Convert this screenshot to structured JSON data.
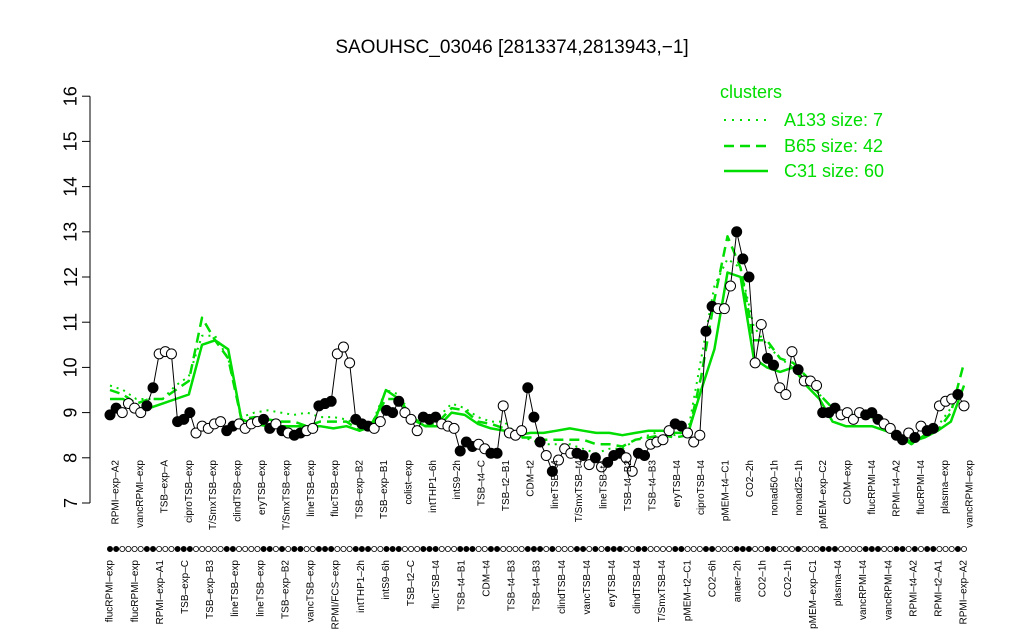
{
  "chart_data": {
    "type": "line",
    "title": "SAOUHSC_03046 [2813374,2813943,−1]",
    "xlabel": "",
    "ylabel": "",
    "ylim": [
      7,
      16
    ],
    "yticks": [
      7,
      8,
      9,
      10,
      11,
      12,
      13,
      14,
      15,
      16
    ],
    "grid": false,
    "legend": {
      "title": "clusters",
      "placement": "top-right",
      "entries": [
        "A133 size: 7",
        "B65 size: 42",
        "C31 size: 60"
      ]
    },
    "colors": {
      "series": "#00dd00",
      "axis": "#000000",
      "points": "#000000",
      "open_points": "#ffffff"
    },
    "labels_top": [
      "RPMI–exp–A2",
      "vancRPMI–exp",
      "TSB–exp–A",
      "ciproTSB–exp",
      "T/SmxTSB–exp",
      "clindTSB–exp",
      "eryTSB–exp",
      "T/SmxTSB–exp",
      "lineTSB–exp",
      "flucTSB–exp",
      "TSB–exp–B2",
      "TSB–exp–B1",
      "colist–exp",
      "intTHP1–6h",
      "intS9–2h",
      "TSB–t4–C",
      "TSB–t2–B1",
      "CDM–t2",
      "lineTSB–t4",
      "T/SmxTSB–t4",
      "lineTSB–t4",
      "TSB–t4–B2",
      "TSB–t4–B3",
      "eryTSB–t4",
      "ciproTSB–t4",
      "pMEM–t4–C1",
      "CO2–2h",
      "nonad50–1h",
      "nonad25–1h",
      "pMEM–exp–C2",
      "CDM–exp",
      "flucRPMI–t4",
      "RPMI–t4–A2",
      "flucRPMI–t4",
      "plasma–exp",
      "vancRPMI–exp"
    ],
    "labels_bottom": [
      "flucRPMI–exp",
      "flucRPMI–exp",
      "RPMI–exp–A1",
      "TSB–exp–C",
      "TSB–exp–B3",
      "lineTSB–exp",
      "lineTSB–exp",
      "TSB–exp–B2",
      "vancTSB–exp",
      "RPMI/FCS–exp",
      "intTHP1–2h",
      "intS9–6h",
      "TSB–t2–C",
      "flucTSB–t4",
      "TSB–t4–B1",
      "CDM–t4",
      "TSB–t4–B3",
      "TSB–t4–B3",
      "clindTSB–t4",
      "vancTSB–t4",
      "eryTSB–t4",
      "clindTSB–t4",
      "T/SmxTSB–t4",
      "pMEM–t2–C1",
      "CO2–6h",
      "anaer–2h",
      "CO2–1h",
      "CO2–1h",
      "pMEM–exp–C1",
      "plasma–t4",
      "vancRPMI–t4",
      "vancRPMI–t4",
      "RPMI–t4–A2",
      "RPMI–t2–A1",
      "RPMI–exp–A2"
    ],
    "points": [
      {
        "y": 8.95,
        "f": 1
      },
      {
        "y": 9.1,
        "f": 1
      },
      {
        "y": 9.0,
        "f": 0
      },
      {
        "y": 9.2,
        "f": 0
      },
      {
        "y": 9.1,
        "f": 0
      },
      {
        "y": 9.0,
        "f": 0
      },
      {
        "y": 9.15,
        "f": 1
      },
      {
        "y": 9.55,
        "f": 1
      },
      {
        "y": 10.3,
        "f": 0
      },
      {
        "y": 10.35,
        "f": 0
      },
      {
        "y": 10.3,
        "f": 0
      },
      {
        "y": 8.8,
        "f": 1
      },
      {
        "y": 8.85,
        "f": 1
      },
      {
        "y": 9.0,
        "f": 1
      },
      {
        "y": 8.55,
        "f": 0
      },
      {
        "y": 8.7,
        "f": 0
      },
      {
        "y": 8.65,
        "f": 0
      },
      {
        "y": 8.75,
        "f": 0
      },
      {
        "y": 8.8,
        "f": 0
      },
      {
        "y": 8.6,
        "f": 1
      },
      {
        "y": 8.7,
        "f": 1
      },
      {
        "y": 8.75,
        "f": 0
      },
      {
        "y": 8.65,
        "f": 0
      },
      {
        "y": 8.75,
        "f": 0
      },
      {
        "y": 8.8,
        "f": 0
      },
      {
        "y": 8.85,
        "f": 1
      },
      {
        "y": 8.65,
        "f": 1
      },
      {
        "y": 8.75,
        "f": 0
      },
      {
        "y": 8.6,
        "f": 1
      },
      {
        "y": 8.55,
        "f": 0
      },
      {
        "y": 8.5,
        "f": 1
      },
      {
        "y": 8.55,
        "f": 1
      },
      {
        "y": 8.6,
        "f": 0
      },
      {
        "y": 8.65,
        "f": 0
      },
      {
        "y": 9.15,
        "f": 1
      },
      {
        "y": 9.2,
        "f": 1
      },
      {
        "y": 9.25,
        "f": 1
      },
      {
        "y": 10.3,
        "f": 0
      },
      {
        "y": 10.45,
        "f": 0
      },
      {
        "y": 10.1,
        "f": 0
      },
      {
        "y": 8.85,
        "f": 1
      },
      {
        "y": 8.75,
        "f": 1
      },
      {
        "y": 8.7,
        "f": 1
      },
      {
        "y": 8.65,
        "f": 0
      },
      {
        "y": 8.8,
        "f": 0
      },
      {
        "y": 9.05,
        "f": 1
      },
      {
        "y": 9.0,
        "f": 1
      },
      {
        "y": 9.25,
        "f": 1
      },
      {
        "y": 9.0,
        "f": 0
      },
      {
        "y": 8.85,
        "f": 0
      },
      {
        "y": 8.6,
        "f": 0
      },
      {
        "y": 8.9,
        "f": 1
      },
      {
        "y": 8.85,
        "f": 1
      },
      {
        "y": 8.9,
        "f": 1
      },
      {
        "y": 8.75,
        "f": 0
      },
      {
        "y": 8.7,
        "f": 0
      },
      {
        "y": 8.65,
        "f": 0
      },
      {
        "y": 8.15,
        "f": 1
      },
      {
        "y": 8.35,
        "f": 1
      },
      {
        "y": 8.25,
        "f": 1
      },
      {
        "y": 8.3,
        "f": 0
      },
      {
        "y": 8.2,
        "f": 0
      },
      {
        "y": 8.1,
        "f": 1
      },
      {
        "y": 8.1,
        "f": 1
      },
      {
        "y": 9.15,
        "f": 0
      },
      {
        "y": 8.55,
        "f": 0
      },
      {
        "y": 8.5,
        "f": 0
      },
      {
        "y": 8.6,
        "f": 0
      },
      {
        "y": 9.55,
        "f": 1
      },
      {
        "y": 8.9,
        "f": 1
      },
      {
        "y": 8.35,
        "f": 1
      },
      {
        "y": 8.05,
        "f": 0
      },
      {
        "y": 7.7,
        "f": 1
      },
      {
        "y": 7.95,
        "f": 0
      },
      {
        "y": 8.2,
        "f": 0
      },
      {
        "y": 8.1,
        "f": 0
      },
      {
        "y": 8.1,
        "f": 1
      },
      {
        "y": 8.05,
        "f": 1
      },
      {
        "y": 7.85,
        "f": 0
      },
      {
        "y": 8.0,
        "f": 1
      },
      {
        "y": 7.8,
        "f": 0
      },
      {
        "y": 7.9,
        "f": 1
      },
      {
        "y": 8.05,
        "f": 1
      },
      {
        "y": 8.1,
        "f": 1
      },
      {
        "y": 8.0,
        "f": 0
      },
      {
        "y": 7.7,
        "f": 0
      },
      {
        "y": 8.1,
        "f": 1
      },
      {
        "y": 8.05,
        "f": 1
      },
      {
        "y": 8.3,
        "f": 0
      },
      {
        "y": 8.35,
        "f": 0
      },
      {
        "y": 8.4,
        "f": 0
      },
      {
        "y": 8.6,
        "f": 0
      },
      {
        "y": 8.75,
        "f": 1
      },
      {
        "y": 8.7,
        "f": 1
      },
      {
        "y": 8.55,
        "f": 0
      },
      {
        "y": 8.35,
        "f": 0
      },
      {
        "y": 8.5,
        "f": 0
      },
      {
        "y": 10.8,
        "f": 1
      },
      {
        "y": 11.35,
        "f": 1
      },
      {
        "y": 11.3,
        "f": 0
      },
      {
        "y": 11.3,
        "f": 0
      },
      {
        "y": 11.8,
        "f": 0
      },
      {
        "y": 13.0,
        "f": 1
      },
      {
        "y": 12.4,
        "f": 1
      },
      {
        "y": 12.0,
        "f": 1
      },
      {
        "y": 10.1,
        "f": 0
      },
      {
        "y": 10.95,
        "f": 0
      },
      {
        "y": 10.2,
        "f": 1
      },
      {
        "y": 10.05,
        "f": 1
      },
      {
        "y": 9.55,
        "f": 0
      },
      {
        "y": 9.4,
        "f": 0
      },
      {
        "y": 10.35,
        "f": 0
      },
      {
        "y": 9.95,
        "f": 1
      },
      {
        "y": 9.7,
        "f": 0
      },
      {
        "y": 9.7,
        "f": 0
      },
      {
        "y": 9.6,
        "f": 0
      },
      {
        "y": 9.0,
        "f": 1
      },
      {
        "y": 9.0,
        "f": 1
      },
      {
        "y": 9.1,
        "f": 1
      },
      {
        "y": 8.95,
        "f": 0
      },
      {
        "y": 9.0,
        "f": 0
      },
      {
        "y": 8.85,
        "f": 0
      },
      {
        "y": 9.0,
        "f": 0
      },
      {
        "y": 8.95,
        "f": 1
      },
      {
        "y": 9.0,
        "f": 1
      },
      {
        "y": 8.85,
        "f": 1
      },
      {
        "y": 8.75,
        "f": 0
      },
      {
        "y": 8.65,
        "f": 0
      },
      {
        "y": 8.5,
        "f": 1
      },
      {
        "y": 8.4,
        "f": 1
      },
      {
        "y": 8.55,
        "f": 0
      },
      {
        "y": 8.45,
        "f": 1
      },
      {
        "y": 8.7,
        "f": 0
      },
      {
        "y": 8.6,
        "f": 1
      },
      {
        "y": 8.65,
        "f": 1
      },
      {
        "y": 9.15,
        "f": 0
      },
      {
        "y": 9.25,
        "f": 0
      },
      {
        "y": 9.3,
        "f": 0
      },
      {
        "y": 9.4,
        "f": 1
      },
      {
        "y": 9.15,
        "f": 0
      }
    ],
    "lines": {
      "A133 size: 7": [
        9.6,
        9.5,
        9.3,
        9.3,
        9.3,
        9.6,
        9.8,
        10.7,
        10.7,
        10.2,
        8.9,
        9.0,
        9.05,
        9.0,
        8.95,
        9.0,
        8.9,
        8.9,
        8.85,
        8.7,
        8.8,
        9.5,
        9.4,
        8.9,
        8.7,
        8.9,
        9.2,
        9.1,
        8.9,
        8.8,
        8.8,
        8.5,
        8.4,
        8.3,
        8.3,
        8.3,
        8.2,
        8.1,
        8.2,
        8.2,
        8.4,
        8.5,
        8.6,
        8.5,
        8.6,
        10.2,
        11.8,
        12.4,
        12.2,
        10.9,
        10.5,
        10.2,
        10.0,
        9.7,
        9.4,
        9.1,
        9.0,
        8.9,
        8.9,
        8.7,
        8.5,
        8.4,
        8.5,
        8.7,
        9.1,
        9.5
      ],
      "B65 size: 42": [
        9.5,
        9.4,
        9.2,
        9.3,
        9.3,
        9.5,
        9.7,
        11.1,
        10.6,
        10.2,
        8.85,
        8.9,
        8.85,
        8.8,
        8.8,
        8.7,
        8.8,
        8.8,
        8.8,
        8.6,
        8.8,
        9.3,
        9.3,
        8.9,
        8.7,
        8.8,
        9.1,
        9.05,
        8.8,
        8.75,
        8.65,
        8.45,
        8.45,
        8.4,
        8.4,
        8.4,
        8.4,
        8.3,
        8.3,
        8.25,
        8.4,
        8.45,
        8.5,
        8.45,
        8.5,
        9.8,
        11.5,
        12.9,
        12.2,
        10.6,
        10.6,
        10.2,
        10.1,
        9.8,
        9.4,
        9.1,
        9.0,
        8.9,
        8.9,
        8.75,
        8.5,
        8.3,
        8.5,
        8.6,
        9.0,
        10.1
      ],
      "C31 size: 60": [
        9.3,
        9.3,
        9.1,
        9.1,
        9.2,
        9.3,
        9.4,
        10.5,
        10.6,
        10.4,
        8.85,
        8.75,
        8.7,
        8.7,
        8.7,
        8.7,
        8.7,
        8.65,
        8.7,
        8.6,
        8.7,
        9.5,
        9.3,
        8.85,
        8.7,
        8.7,
        9.0,
        8.95,
        8.75,
        8.65,
        8.6,
        8.5,
        8.55,
        8.55,
        8.6,
        8.65,
        8.6,
        8.55,
        8.55,
        8.5,
        8.55,
        8.6,
        8.6,
        8.55,
        8.55,
        9.5,
        10.4,
        12.1,
        12.0,
        10.2,
        10.0,
        9.9,
        10.0,
        9.6,
        9.3,
        8.8,
        8.7,
        8.7,
        8.7,
        8.6,
        8.5,
        8.35,
        8.45,
        8.6,
        8.8,
        9.6
      ]
    }
  }
}
